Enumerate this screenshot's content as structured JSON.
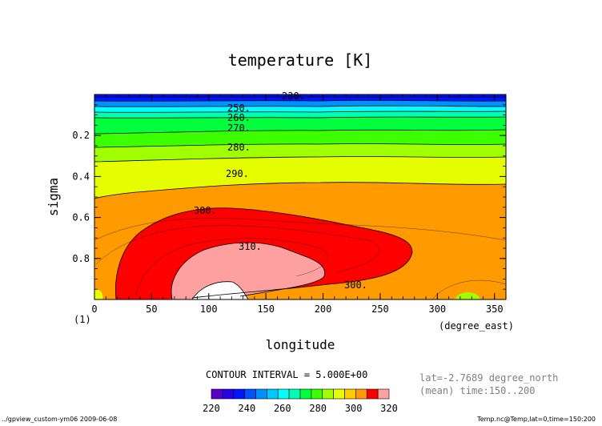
{
  "chart_data": {
    "type": "contour",
    "title": "temperature [K]",
    "xlabel": "longitude",
    "x_units": "(degree_east)",
    "ylabel": "sigma",
    "panel_label": "(1)",
    "xlim": [
      0,
      360
    ],
    "ylim": [
      1.0,
      0.0
    ],
    "x_ticks": [
      0,
      50,
      100,
      150,
      200,
      250,
      300,
      350
    ],
    "y_ticks": [
      0.2,
      0.4,
      0.6,
      0.8
    ],
    "contour_labels": [
      "230.",
      "250.",
      "260.",
      "270.",
      "280.",
      "290.",
      "300.",
      "310.",
      "300."
    ],
    "contour_interval_text": "CONTOUR INTERVAL = 5.000E+00",
    "colorbar": {
      "levels": [
        220,
        225,
        230,
        235,
        240,
        245,
        250,
        255,
        260,
        265,
        270,
        275,
        280,
        285,
        290,
        295,
        300,
        305,
        310,
        315,
        320
      ],
      "tick_labels": [
        "220",
        "240",
        "260",
        "280",
        "300",
        "320"
      ],
      "colors": [
        "#5a00c8",
        "#2800e6",
        "#0014ff",
        "#0050ff",
        "#0090ff",
        "#00c8ff",
        "#00ffff",
        "#00ffb4",
        "#00ff3c",
        "#3cff00",
        "#a0ff00",
        "#e6ff00",
        "#ffcc00",
        "#ff9a00",
        "#ff0000",
        "#ffa0a0"
      ]
    },
    "info_lines": [
      "lat=-2.7689 degree_north",
      "(mean) time:150..200"
    ]
  },
  "footer": {
    "left": "../gpview_custom-ym06  2009-06-08",
    "right": "Temp.nc@Temp,lat=0,time=150:200"
  }
}
